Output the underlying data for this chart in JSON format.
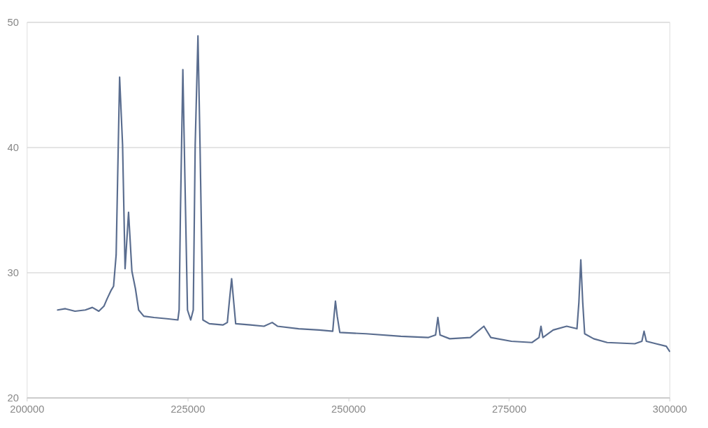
{
  "chart_data": {
    "type": "line",
    "x": [
      204800,
      206000,
      207500,
      209100,
      210200,
      211200,
      212000,
      212500,
      213150,
      213500,
      213900,
      214440,
      214900,
      215290,
      215830,
      216350,
      216900,
      217400,
      218200,
      219800,
      221800,
      223500,
      223700,
      223900,
      224280,
      224600,
      225000,
      225500,
      225900,
      226200,
      226630,
      226950,
      227400,
      228400,
      230500,
      231200,
      231500,
      231870,
      232200,
      232500,
      234800,
      236900,
      238180,
      239000,
      242300,
      245500,
      247600,
      247800,
      248020,
      248300,
      248700,
      252800,
      258200,
      262500,
      263600,
      263960,
      264300,
      265800,
      269000,
      271120,
      272200,
      275400,
      278600,
      279700,
      280000,
      280300,
      281900,
      284000,
      285600,
      285900,
      286200,
      286500,
      286800,
      288200,
      290300,
      294600,
      295700,
      296040,
      296400,
      297900,
      299500,
      300000
    ],
    "series": [
      {
        "color": "#5a6d8f",
        "values": [
          27.0,
          27.1,
          26.9,
          27.0,
          27.2,
          26.9,
          27.3,
          27.9,
          28.6,
          28.9,
          31.4,
          45.6,
          40.2,
          30.3,
          34.8,
          30.1,
          28.7,
          27.0,
          26.5,
          26.4,
          26.3,
          26.2,
          27.0,
          34.7,
          46.2,
          37.5,
          27.0,
          26.2,
          27.0,
          40.2,
          48.9,
          40.2,
          26.2,
          25.9,
          25.8,
          26.0,
          27.6,
          29.5,
          27.6,
          25.9,
          25.8,
          25.7,
          26.0,
          25.7,
          25.5,
          25.4,
          25.3,
          26.5,
          27.7,
          26.5,
          25.2,
          25.1,
          24.9,
          24.8,
          25.0,
          26.4,
          25.0,
          24.7,
          24.8,
          25.7,
          24.8,
          24.5,
          24.4,
          24.8,
          25.7,
          24.8,
          25.4,
          25.7,
          25.5,
          27.6,
          31.0,
          27.6,
          25.1,
          24.7,
          24.4,
          24.3,
          24.5,
          25.3,
          24.5,
          24.3,
          24.1,
          23.7
        ]
      }
    ],
    "xlim": [
      200000,
      300000
    ],
    "xticks": [
      200000,
      225000,
      250000,
      275000,
      300000
    ],
    "ylim": [
      20,
      50
    ],
    "yticks": [
      20,
      30,
      40,
      50
    ],
    "grid": "y",
    "legend": false,
    "marker": "none",
    "line_style": "solid"
  }
}
